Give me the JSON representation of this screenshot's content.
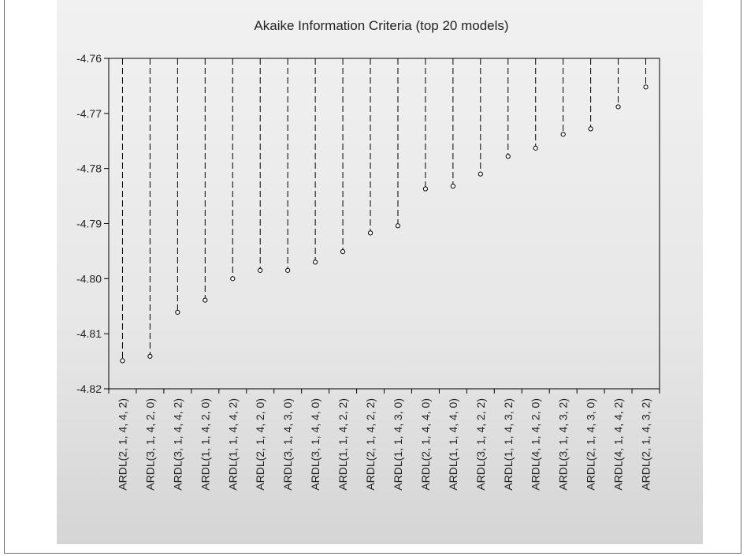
{
  "chart_data": {
    "type": "scatter",
    "title": "Akaike Information Criteria (top 20 models)",
    "xlabel": "",
    "ylabel": "",
    "ylim": [
      -4.82,
      -4.76
    ],
    "yticks": [
      -4.76,
      -4.77,
      -4.78,
      -4.79,
      -4.8,
      -4.81,
      -4.82
    ],
    "ytick_labels": [
      "-4.76",
      "-4.77",
      "-4.78",
      "-4.79",
      "-4.80",
      "-4.81",
      "-4.82"
    ],
    "grid": false,
    "legend": "none",
    "drop_lines": "dashed, from top of plot to each point",
    "categories": [
      "ARDL(2, 1, 4, 4, 2)",
      "ARDL(3, 1, 4, 2, 0)",
      "ARDL(3, 1, 4, 4, 2)",
      "ARDL(1, 1, 4, 2, 0)",
      "ARDL(1, 1, 4, 4, 2)",
      "ARDL(2, 1, 4, 2, 0)",
      "ARDL(3, 1, 4, 3, 0)",
      "ARDL(3, 1, 4, 4, 0)",
      "ARDL(1, 1, 4, 2, 2)",
      "ARDL(2, 1, 4, 2, 2)",
      "ARDL(1, 1, 4, 3, 0)",
      "ARDL(2, 1, 4, 4, 0)",
      "ARDL(1, 1, 4, 4, 0)",
      "ARDL(3, 1, 4, 2, 2)",
      "ARDL(1, 1, 4, 3, 2)",
      "ARDL(4, 1, 4, 2, 0)",
      "ARDL(3, 1, 4, 3, 2)",
      "ARDL(2, 1, 4, 3, 0)",
      "ARDL(4, 1, 4, 4, 2)",
      "ARDL(2, 1, 4, 3, 2)"
    ],
    "values": [
      -4.8149,
      -4.8141,
      -4.8061,
      -4.8039,
      -4.8,
      -4.7985,
      -4.7985,
      -4.797,
      -4.7951,
      -4.7917,
      -4.7904,
      -4.7837,
      -4.7832,
      -4.781,
      -4.7778,
      -4.7763,
      -4.7738,
      -4.7728,
      -4.7688,
      -4.7652
    ],
    "colors": {
      "line": "#000000",
      "marker_fill": "#ffffff",
      "axis": "#000000"
    }
  }
}
